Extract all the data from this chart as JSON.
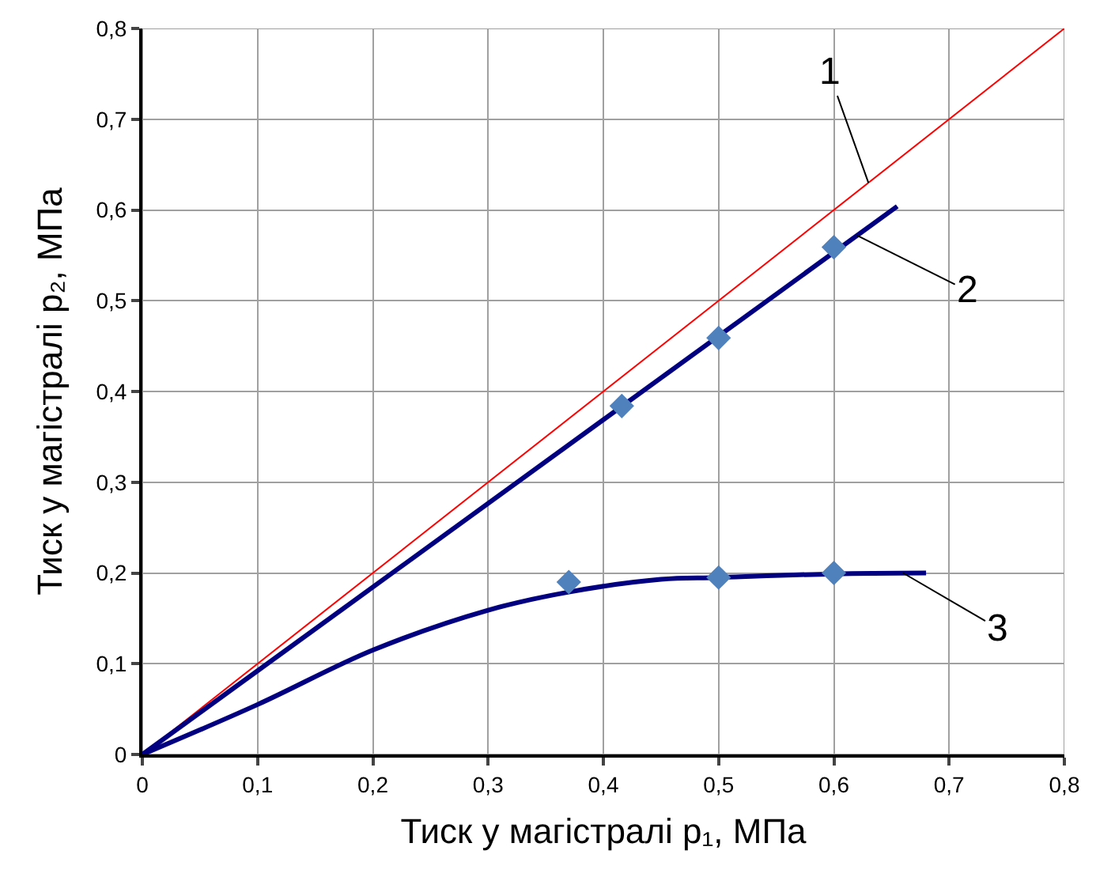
{
  "chart_data": {
    "type": "line",
    "xlabel": "Тиск у магістралі p₁, МПа",
    "ylabel": "Тиск у магістралі p₂, МПа",
    "xlim": [
      0,
      0.8
    ],
    "ylim": [
      0,
      0.8
    ],
    "xticks": [
      0,
      {
        "value": 0.1,
        "label": "0,1"
      },
      {
        "value": 0.2,
        "label": "0,2"
      },
      {
        "value": 0.3,
        "label": "0,3"
      },
      {
        "value": 0.4,
        "label": "0,4"
      },
      {
        "value": 0.5,
        "label": "0,5"
      },
      {
        "value": 0.6,
        "label": "0,6"
      },
      {
        "value": 0.7,
        "label": "0,7"
      },
      {
        "value": 0.8,
        "label": "0,8"
      }
    ],
    "yticks": [
      0,
      {
        "value": 0.1,
        "label": "0,1"
      },
      {
        "value": 0.2,
        "label": "0,2"
      },
      {
        "value": 0.3,
        "label": "0,3"
      },
      {
        "value": 0.4,
        "label": "0,4"
      },
      {
        "value": 0.5,
        "label": "0,5"
      },
      {
        "value": 0.6,
        "label": "0,6"
      },
      {
        "value": 0.7,
        "label": "0,7"
      },
      {
        "value": 0.8,
        "label": "0,8"
      }
    ],
    "grid": true,
    "series": [
      {
        "color": "#ff0000",
        "marker": "none",
        "x": [
          0,
          0.8
        ],
        "values": [
          0,
          0.8
        ]
      },
      {
        "color": "#000080",
        "marker": "none",
        "x": [
          0,
          0.655
        ],
        "values": [
          0,
          0.604
        ]
      },
      {
        "type": "scatter",
        "color": "#4f81bd",
        "marker": "diamond",
        "x": [
          0.416,
          0.5,
          0.6
        ],
        "values": [
          0.384,
          0.459,
          0.559
        ]
      },
      {
        "color": "#000080",
        "marker": "none",
        "x": [
          0,
          0.1,
          0.2,
          0.3,
          0.37,
          0.45,
          0.5,
          0.6,
          0.68
        ],
        "values": [
          0,
          0.055,
          0.115,
          0.159,
          0.179,
          0.193,
          0.195,
          0.199,
          0.2
        ]
      },
      {
        "type": "scatter",
        "color": "#4f81bd",
        "marker": "diamond",
        "x": [
          0.37,
          0.5,
          0.6
        ],
        "values": [
          0.19,
          0.195,
          0.2
        ]
      }
    ],
    "annotations": [
      {
        "text": "1",
        "x": 0.63,
        "y": 0.63
      },
      {
        "text": "2",
        "x": 0.62,
        "y": 0.572
      },
      {
        "text": "3",
        "x": 0.66,
        "y": 0.2
      }
    ]
  }
}
